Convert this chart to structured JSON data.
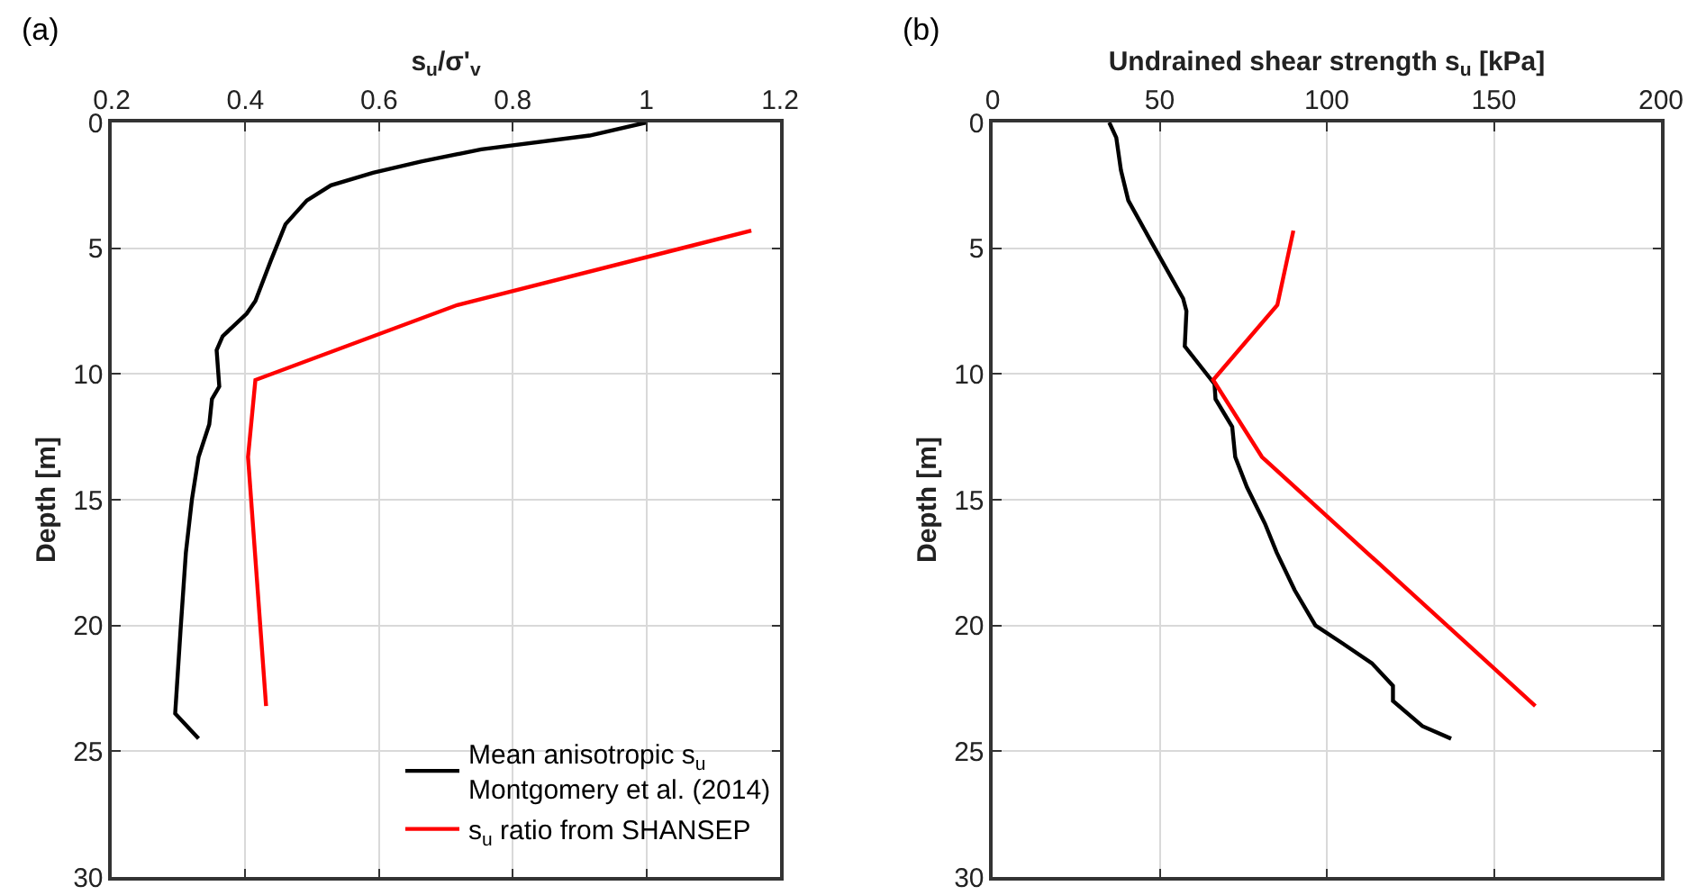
{
  "chart_data": [
    {
      "type": "line",
      "title": "(a)",
      "xlabel": "s$_{u}$/σ'$_{v}$",
      "ylabel": "Depth [m]",
      "xlim": [
        0.2,
        1.2
      ],
      "xticks": [
        0.2,
        0.4,
        0.6,
        0.8,
        1,
        1.2
      ],
      "ylim": [
        30,
        0
      ],
      "yticks": [
        0,
        5,
        10,
        15,
        20,
        25,
        30
      ],
      "grid": true,
      "legend": "bottom right",
      "marker": "none",
      "line_style": "solid",
      "series": [
        {
          "name": "Mean anisotropic s$_{u}$\nMontgomery et al. (2014)",
          "color": "#000000",
          "x": [
            1.0,
            0.915,
            0.753,
            0.663,
            0.591,
            0.528,
            0.492,
            0.46,
            0.438,
            0.415,
            0.402,
            0.366,
            0.357,
            0.361,
            0.35,
            0.346,
            0.33,
            0.32,
            0.311,
            0.303,
            0.295,
            0.33
          ],
          "values": [
            0,
            0.52,
            1.07,
            1.55,
            2.0,
            2.5,
            3.1,
            4.05,
            5.5,
            7.1,
            7.6,
            8.5,
            9.05,
            10.5,
            11.0,
            12.0,
            13.3,
            15.0,
            17.1,
            20.2,
            23.5,
            24.5
          ]
        },
        {
          "name": "s$_{u}$ ratio from SHANSEP",
          "color": "#ff0000",
          "x": [
            1.157,
            0.717,
            0.415,
            0.404,
            0.431
          ],
          "values": [
            4.3,
            7.26,
            10.24,
            13.3,
            23.2
          ]
        }
      ]
    },
    {
      "type": "line",
      "title": "(b)",
      "xlabel": "Undrained shear strength s$_{u}$ [kPa]",
      "ylabel": "Depth [m]",
      "xlim": [
        0,
        200
      ],
      "xticks": [
        0,
        50,
        100,
        150,
        200
      ],
      "ylim": [
        30,
        0
      ],
      "yticks": [
        0,
        5,
        10,
        15,
        20,
        25,
        30
      ],
      "grid": true,
      "marker": "none",
      "line_style": "solid",
      "series": [
        {
          "color": "#000000",
          "x": [
            34.9,
            37,
            38.4,
            40.6,
            47.7,
            57,
            58,
            57.5,
            66.4,
            66.7,
            71.7,
            72.6,
            76.1,
            81.5,
            85,
            90.4,
            96.6,
            104.6,
            113.5,
            119.8,
            119.8,
            128.6,
            137.2
          ],
          "values": [
            0,
            0.6,
            1.9,
            3.1,
            4.8,
            7.0,
            7.5,
            8.9,
            10.4,
            11.0,
            12.1,
            13.3,
            14.5,
            15.95,
            17.1,
            18.6,
            20,
            20.7,
            21.5,
            22.4,
            23.0,
            24.0,
            24.5
          ]
        },
        {
          "color": "#ff0000",
          "x": [
            90,
            85.2,
            66,
            80.6,
            162.4
          ],
          "values": [
            4.3,
            7.26,
            10.24,
            13.3,
            23.2
          ]
        }
      ]
    }
  ]
}
